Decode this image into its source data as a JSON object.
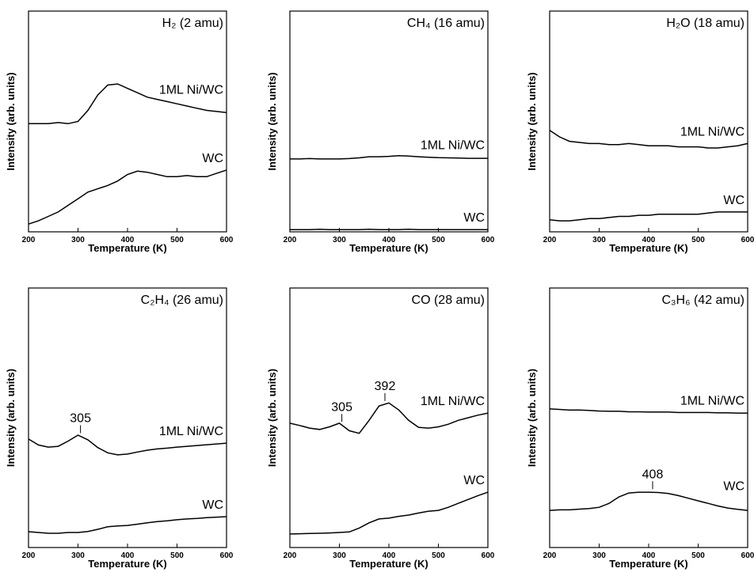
{
  "chart_data": [
    {
      "type": "line",
      "title": "H₂ (2 amu)",
      "xlabel": "Temperature (K)",
      "ylabel": "Intensity (arb. units)",
      "x": [
        200,
        220,
        240,
        260,
        280,
        300,
        320,
        340,
        360,
        380,
        400,
        420,
        440,
        460,
        480,
        500,
        520,
        540,
        560,
        580,
        600
      ],
      "xlim": [
        200,
        600
      ],
      "xticks": [
        200,
        300,
        400,
        500,
        600
      ],
      "ylim": [
        0,
        100
      ],
      "series": [
        {
          "name": "1ML Ni/WC",
          "color": "#000000",
          "values": [
            49,
            49,
            49,
            49.5,
            49,
            50,
            55,
            62,
            66.5,
            67,
            65,
            63,
            61,
            60,
            59,
            58,
            57,
            56,
            55,
            54.5,
            54
          ]
        },
        {
          "name": "WC",
          "color": "#000000",
          "values": [
            3.5,
            5,
            7,
            9,
            12,
            15,
            18,
            19.5,
            21,
            23,
            26,
            27.5,
            27,
            26,
            25,
            25,
            25.5,
            25,
            25,
            26.5,
            28
          ]
        }
      ]
    },
    {
      "type": "line",
      "title": "CH₄ (16 amu)",
      "xlabel": "Temperature (K)",
      "ylabel": "Intensity (arb. units)",
      "x": [
        200,
        220,
        240,
        260,
        280,
        300,
        320,
        340,
        360,
        380,
        400,
        420,
        440,
        460,
        480,
        500,
        520,
        540,
        560,
        580,
        600
      ],
      "xlim": [
        200,
        600
      ],
      "xticks": [
        200,
        300,
        400,
        500,
        600
      ],
      "ylim": [
        0,
        100
      ],
      "series": [
        {
          "name": "1ML Ni/WC",
          "color": "#000000",
          "values": [
            33,
            33,
            33.2,
            33,
            33,
            33,
            33.2,
            33.5,
            34,
            34,
            34.2,
            34.5,
            34.3,
            34,
            33.8,
            33.6,
            33.5,
            33.4,
            33.3,
            33.3,
            33.3
          ]
        },
        {
          "name": "WC",
          "color": "#000000",
          "values": [
            1,
            1,
            1,
            1.2,
            1,
            1,
            1,
            1,
            1.2,
            1,
            1,
            1,
            1.2,
            1,
            1,
            1,
            1,
            1,
            1,
            1,
            1
          ]
        }
      ]
    },
    {
      "type": "line",
      "title": "H₂O (18 amu)",
      "xlabel": "Temperature (K)",
      "ylabel": "Intensity (arb. units)",
      "x": [
        200,
        220,
        240,
        260,
        280,
        300,
        320,
        340,
        360,
        380,
        400,
        420,
        440,
        460,
        480,
        500,
        520,
        540,
        560,
        580,
        600
      ],
      "xlim": [
        200,
        600
      ],
      "xticks": [
        200,
        300,
        400,
        500,
        600
      ],
      "ylim": [
        0,
        100
      ],
      "series": [
        {
          "name": "1ML Ni/WC",
          "color": "#000000",
          "values": [
            46,
            43,
            41,
            40.5,
            40,
            40,
            39.5,
            39.5,
            40,
            39.5,
            39,
            39,
            39,
            38.5,
            38.5,
            38.5,
            38,
            38,
            38.5,
            39,
            40
          ]
        },
        {
          "name": "WC",
          "color": "#000000",
          "values": [
            5.5,
            5,
            5,
            5.5,
            6,
            6,
            6.5,
            7,
            7,
            7.5,
            7.5,
            8,
            8,
            8,
            8,
            8,
            8.5,
            9,
            9,
            9,
            9
          ]
        }
      ]
    },
    {
      "type": "line",
      "title": "C₂H₄ (26 amu)",
      "xlabel": "Temperature (K)",
      "ylabel": "Intensity (arb. units)",
      "x": [
        200,
        220,
        240,
        260,
        280,
        300,
        320,
        340,
        360,
        380,
        400,
        420,
        440,
        460,
        480,
        500,
        520,
        540,
        560,
        580,
        600
      ],
      "xlim": [
        200,
        600
      ],
      "xticks": [
        200,
        300,
        400,
        500,
        600
      ],
      "ylim": [
        0,
        100
      ],
      "series": [
        {
          "name": "1ML Ni/WC",
          "color": "#000000",
          "peaks": [
            305
          ],
          "values": [
            41.8,
            39.5,
            38.7,
            39,
            41,
            43.3,
            41.5,
            38.5,
            36.5,
            35.7,
            36,
            36.8,
            37.5,
            38,
            38.3,
            38.7,
            39,
            39.3,
            39.6,
            39.9,
            40.2
          ]
        },
        {
          "name": "WC",
          "color": "#000000",
          "values": [
            6.1,
            5.8,
            5.5,
            5.5,
            5.8,
            5.8,
            6.2,
            7,
            8,
            8.3,
            8.5,
            9,
            9.5,
            10,
            10.3,
            10.7,
            11,
            11.2,
            11.5,
            11.7,
            11.9
          ]
        }
      ]
    },
    {
      "type": "line",
      "title": "CO (28 amu)",
      "xlabel": "Temperature (K)",
      "ylabel": "Intensity (arb. units)",
      "x": [
        200,
        220,
        240,
        260,
        280,
        300,
        320,
        340,
        360,
        380,
        400,
        420,
        440,
        460,
        480,
        500,
        520,
        540,
        560,
        580,
        600
      ],
      "xlim": [
        200,
        600
      ],
      "xticks": [
        200,
        300,
        400,
        500,
        600
      ],
      "ylim": [
        0,
        100
      ],
      "series": [
        {
          "name": "1ML Ni/WC",
          "color": "#000000",
          "peaks": [
            305,
            392
          ],
          "values": [
            47.9,
            47,
            46,
            45.5,
            46.5,
            47.9,
            45,
            44,
            49,
            54.5,
            55.7,
            53,
            49,
            46.3,
            46,
            46.5,
            47.5,
            49,
            50,
            51,
            51.8
          ]
        },
        {
          "name": "WC",
          "color": "#000000",
          "values": [
            5.2,
            5.3,
            5.4,
            5.5,
            5.6,
            5.8,
            6,
            7.5,
            9.5,
            11,
            11.3,
            12,
            12.5,
            13.3,
            14,
            14.3,
            15.5,
            17,
            18.5,
            20,
            21.3
          ]
        }
      ]
    },
    {
      "type": "line",
      "title": "C₃H₆ (42 amu)",
      "xlabel": "Temperature (K)",
      "ylabel": "Intensity (arb. units)",
      "x": [
        200,
        220,
        240,
        260,
        280,
        300,
        320,
        340,
        360,
        380,
        400,
        420,
        440,
        460,
        480,
        500,
        520,
        540,
        560,
        580,
        600
      ],
      "xlim": [
        200,
        600
      ],
      "xticks": [
        200,
        300,
        400,
        500,
        600
      ],
      "ylim": [
        0,
        100
      ],
      "series": [
        {
          "name": "1ML Ni/WC",
          "color": "#000000",
          "values": [
            53.4,
            53.2,
            53,
            53,
            52.8,
            52.6,
            52.5,
            52.5,
            52.3,
            52.3,
            52.2,
            52.2,
            52.2,
            52,
            52,
            52,
            52,
            51.9,
            51.9,
            51.8,
            51.8
          ]
        },
        {
          "name": "WC",
          "color": "#000000",
          "peaks": [
            408
          ],
          "values": [
            14.3,
            14.5,
            14.5,
            14.8,
            15,
            15.5,
            17,
            19.5,
            21,
            21.3,
            21.3,
            21.2,
            20.8,
            20,
            19,
            18,
            17,
            16,
            15.2,
            14.7,
            14.3
          ]
        }
      ]
    }
  ]
}
